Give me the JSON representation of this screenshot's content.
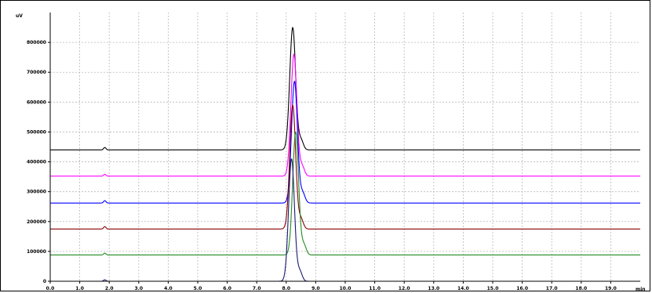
{
  "chart_data": {
    "type": "line",
    "title": "",
    "xlabel": "min",
    "ylabel": "uV",
    "xlim": [
      0.0,
      20.0
    ],
    "ylim": [
      0,
      900000
    ],
    "x_ticks": [
      0.0,
      1.0,
      2.0,
      3.0,
      4.0,
      5.0,
      6.0,
      7.0,
      8.0,
      9.0,
      10.0,
      11.0,
      12.0,
      13.0,
      14.0,
      15.0,
      16.0,
      17.0,
      18.0,
      19.0
    ],
    "x_tick_labels": [
      "0.0",
      "1.0",
      "2.0",
      "3.0",
      "4.0",
      "5.0",
      "6.0",
      "7.0",
      "8.0",
      "9.0",
      "10.0",
      "11.0",
      "12.0",
      "13.0",
      "14.0",
      "15.0",
      "16.0",
      "17.0",
      "18.0",
      "19.0"
    ],
    "y_ticks": [
      0,
      100000,
      200000,
      300000,
      400000,
      500000,
      600000,
      700000,
      800000
    ],
    "y_tick_labels": [
      "0",
      "100000",
      "200000",
      "300000",
      "400000",
      "500000",
      "600000",
      "700000",
      "800000"
    ],
    "grid": true,
    "legend": "none",
    "series": [
      {
        "color": "#000000",
        "baseline": 440000,
        "peak_time": 8.22,
        "peak_height": 850000,
        "small_peak_time": 1.85,
        "small_peak_height": 448000
      },
      {
        "color": "#ff00ff",
        "baseline": 352000,
        "peak_time": 8.26,
        "peak_height": 760000,
        "small_peak_time": 1.85,
        "small_peak_height": 358000
      },
      {
        "color": "#0000ff",
        "baseline": 262000,
        "peak_time": 8.28,
        "peak_height": 670000,
        "small_peak_time": 1.85,
        "small_peak_height": 270000
      },
      {
        "color": "#8b0000",
        "baseline": 175000,
        "peak_time": 8.22,
        "peak_height": 590000,
        "small_peak_time": 1.85,
        "small_peak_height": 183000
      },
      {
        "color": "#228b22",
        "baseline": 88000,
        "peak_time": 8.32,
        "peak_height": 500000,
        "small_peak_time": 1.85,
        "small_peak_height": 94000
      },
      {
        "color": "#191970",
        "baseline": 0,
        "peak_time": 8.18,
        "peak_height": 410000,
        "small_peak_time": 1.85,
        "small_peak_height": 5000
      }
    ]
  }
}
